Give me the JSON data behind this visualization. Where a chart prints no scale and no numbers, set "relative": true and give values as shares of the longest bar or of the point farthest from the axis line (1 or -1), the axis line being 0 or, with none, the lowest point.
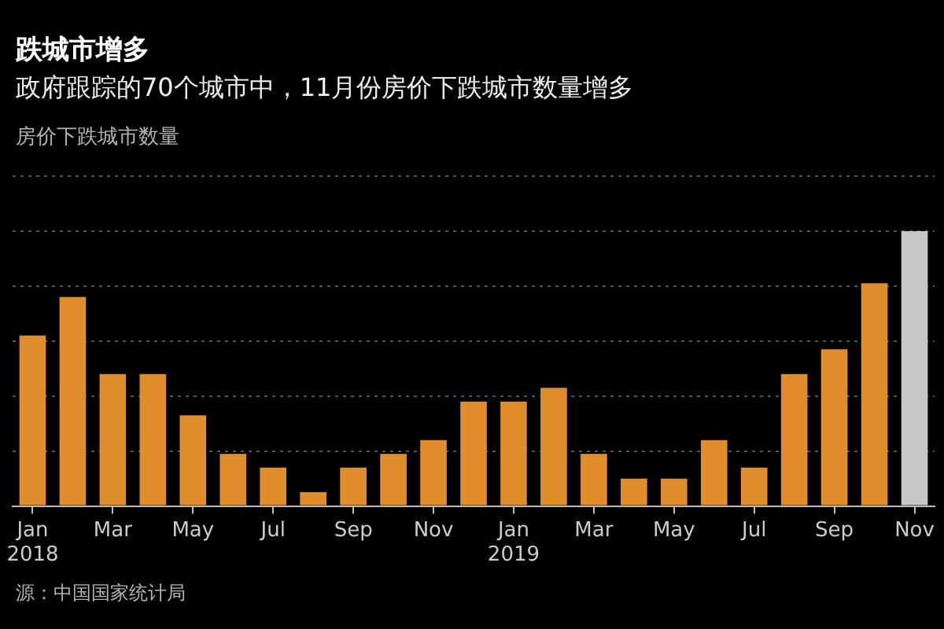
{
  "chart_data": {
    "type": "bar",
    "title": "跌城市增多",
    "subtitle": "政府跟踪的70个城市中，11月份房价下跌城市数量增多",
    "ylabel": "房价下跌城市数量",
    "annotations": [
      "源：中国国家统计局"
    ],
    "categories": [
      "Jan 2018",
      null,
      "Mar",
      null,
      "May",
      null,
      "Jul",
      null,
      "Sep",
      null,
      "Nov",
      null,
      "Jan 2019",
      null,
      "Mar",
      null,
      "May",
      null,
      "Jul",
      null,
      "Sep",
      null,
      "Nov"
    ],
    "values": [
      0.62,
      0.76,
      0.48,
      0.48,
      0.33,
      0.19,
      0.14,
      0.05,
      0.14,
      0.19,
      0.24,
      0.38,
      0.38,
      0.43,
      0.19,
      0.1,
      0.1,
      0.24,
      0.14,
      0.48,
      0.57,
      0.81,
      1
    ],
    "colors": [
      "#e08e2b",
      "#e08e2b",
      "#e08e2b",
      "#e08e2b",
      "#e08e2b",
      "#e08e2b",
      "#e08e2b",
      "#e08e2b",
      "#e08e2b",
      "#e08e2b",
      "#e08e2b",
      "#e08e2b",
      "#e08e2b",
      "#e08e2b",
      "#e08e2b",
      "#e08e2b",
      "#e08e2b",
      "#e08e2b",
      "#e08e2b",
      "#e08e2b",
      "#e08e2b",
      "#e08e2b",
      "#c6c6c6"
    ],
    "relative": true,
    "grid": "y"
  }
}
